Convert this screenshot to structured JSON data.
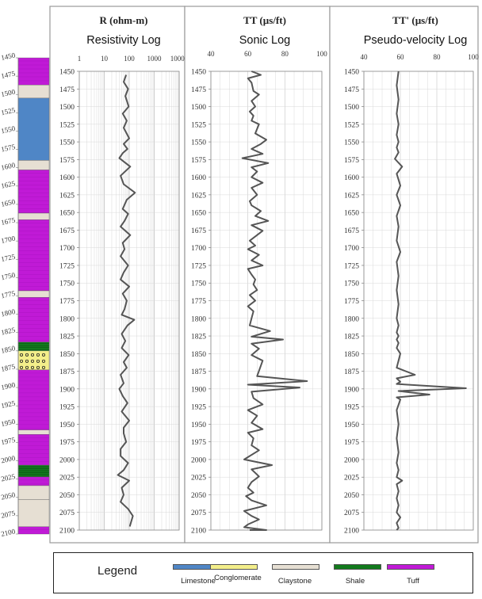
{
  "colors": {
    "Limestone": "#4f86c6",
    "Conglomerate": "#f3ee8a",
    "Claystone": "#e6dfd3",
    "Shale": "#127a1d",
    "Tuff": "#c01ad6",
    "curve": "#555555",
    "grid": "#d9d9d9"
  },
  "legend": {
    "title": "Legend",
    "items": [
      "Limestone",
      "Conglomerate",
      "Claystone",
      "Shale",
      "Tuff"
    ]
  },
  "lithology": {
    "depth_ticks": [
      "1450",
      "1475",
      "1500",
      "1525",
      "1550",
      "1575",
      "1600",
      "1625",
      "1650",
      "1675",
      "1700",
      "1725",
      "1750",
      "1775",
      "1800",
      "1825",
      "1850",
      "1875",
      "1900",
      "1925",
      "1950",
      "1975",
      "2000",
      "2025",
      "2050",
      "2075",
      "2100"
    ],
    "intervals": [
      {
        "top": 1450,
        "base": 1487,
        "lith": "Tuff"
      },
      {
        "top": 1487,
        "base": 1505,
        "lith": "Claystone"
      },
      {
        "top": 1505,
        "base": 1590,
        "lith": "Limestone"
      },
      {
        "top": 1590,
        "base": 1603,
        "lith": "Claystone"
      },
      {
        "top": 1603,
        "base": 1662,
        "lith": "Tuff"
      },
      {
        "top": 1662,
        "base": 1671,
        "lith": "Claystone"
      },
      {
        "top": 1671,
        "base": 1768,
        "lith": "Tuff"
      },
      {
        "top": 1768,
        "base": 1777,
        "lith": "Claystone"
      },
      {
        "top": 1777,
        "base": 1838,
        "lith": "Tuff"
      },
      {
        "top": 1838,
        "base": 1850,
        "lith": "Shale"
      },
      {
        "top": 1850,
        "base": 1876,
        "lith": "Conglomerate"
      },
      {
        "top": 1876,
        "base": 1958,
        "lith": "Tuff"
      },
      {
        "top": 1958,
        "base": 1964,
        "lith": "Claystone"
      },
      {
        "top": 1964,
        "base": 2006,
        "lith": "Tuff"
      },
      {
        "top": 2006,
        "base": 2022,
        "lith": "Shale"
      },
      {
        "top": 2022,
        "base": 2034,
        "lith": "Tuff"
      },
      {
        "top": 2034,
        "base": 2053,
        "lith": "Claystone"
      },
      {
        "top": 2053,
        "base": 2090,
        "lith": "Claystone"
      },
      {
        "top": 2090,
        "base": 2100,
        "lith": "Tuff"
      }
    ]
  },
  "chart_data": [
    {
      "type": "line",
      "title": "R (ohm-m)",
      "subtitle": "Resistivity Log",
      "x_scale": "log",
      "xlim": [
        1,
        10000
      ],
      "x_ticks": [
        "1",
        "10",
        "100",
        "1000",
        "10000"
      ],
      "ylim": [
        1450,
        2100
      ],
      "y_inverted": true,
      "y_ticks": [
        "1450",
        "1475",
        "1500",
        "1525",
        "1550",
        "1575",
        "1600",
        "1625",
        "1650",
        "1675",
        "1700",
        "1725",
        "1750",
        "1775",
        "1800",
        "1825",
        "1850",
        "1875",
        "1900",
        "1925",
        "1950",
        "1975",
        "2000",
        "2025",
        "2050",
        "2075",
        "2100"
      ],
      "grid": true,
      "series": [
        {
          "x": [
            75,
            60,
            90,
            70,
            95,
            55,
            80,
            60,
            100,
            60,
            85,
            55,
            40,
            110,
            45,
            60,
            170,
            80,
            55,
            90,
            65,
            45,
            110,
            55,
            65,
            45,
            90,
            60,
            45,
            100,
            55,
            80,
            65,
            50,
            160,
            85,
            50,
            70,
            50,
            95,
            60,
            80,
            45,
            60,
            40,
            55,
            85,
            50,
            100,
            60,
            60,
            75,
            45,
            45,
            90,
            60,
            35,
            100,
            50,
            60,
            45,
            90,
            140,
            105
          ],
          "y": [
            1455,
            1465,
            1475,
            1485,
            1500,
            1510,
            1520,
            1530,
            1545,
            1553,
            1560,
            1566,
            1573,
            1585,
            1598,
            1610,
            1622,
            1632,
            1645,
            1652,
            1662,
            1670,
            1682,
            1693,
            1702,
            1712,
            1725,
            1735,
            1745,
            1755,
            1765,
            1775,
            1787,
            1795,
            1802,
            1810,
            1822,
            1832,
            1842,
            1852,
            1862,
            1870,
            1880,
            1892,
            1900,
            1910,
            1920,
            1932,
            1945,
            1955,
            1963,
            1975,
            1985,
            1995,
            2005,
            2015,
            2022,
            2030,
            2040,
            2050,
            2060,
            2070,
            2080,
            2095
          ]
        }
      ]
    },
    {
      "type": "line",
      "title": "TT (µs/ft)",
      "subtitle": "Sonic Log",
      "xlim": [
        40,
        100
      ],
      "x_ticks": [
        "40",
        "60",
        "80",
        "100"
      ],
      "ylim": [
        1450,
        2100
      ],
      "y_inverted": true,
      "y_ticks": [
        "1450",
        "1475",
        "1500",
        "1525",
        "1550",
        "1575",
        "1600",
        "1625",
        "1650",
        "1675",
        "1700",
        "1725",
        "1750",
        "1775",
        "1800",
        "1825",
        "1850",
        "1875",
        "1900",
        "1925",
        "1950",
        "1975",
        "2000",
        "2025",
        "2050",
        "2075",
        "2100"
      ],
      "grid": true,
      "series": [
        {
          "x": [
            62,
            67,
            60,
            62,
            63,
            66,
            62,
            64,
            61,
            63,
            62,
            66,
            64,
            70,
            67,
            62,
            68,
            57,
            71,
            62,
            65,
            62,
            68,
            62,
            65,
            61,
            62,
            67,
            64,
            71,
            62,
            68,
            65,
            61,
            64,
            60,
            66,
            62,
            68,
            60,
            62,
            64,
            63,
            65,
            61,
            64,
            60,
            63,
            62,
            61,
            72,
            62,
            79,
            62,
            66,
            62,
            68,
            65,
            92,
            60,
            88,
            62,
            63,
            68,
            60,
            65,
            62,
            68,
            60,
            63,
            62,
            66,
            58,
            73,
            62,
            66,
            62,
            60,
            63,
            59,
            62,
            70,
            58,
            62,
            66,
            60,
            58,
            70,
            61
          ],
          "y": [
            1450,
            1455,
            1460,
            1466,
            1478,
            1483,
            1492,
            1500,
            1507,
            1513,
            1520,
            1525,
            1538,
            1547,
            1553,
            1560,
            1567,
            1573,
            1580,
            1586,
            1592,
            1600,
            1608,
            1615,
            1625,
            1634,
            1640,
            1648,
            1655,
            1662,
            1668,
            1676,
            1682,
            1690,
            1697,
            1702,
            1710,
            1718,
            1725,
            1730,
            1738,
            1745,
            1752,
            1760,
            1767,
            1775,
            1783,
            1790,
            1800,
            1810,
            1818,
            1826,
            1830,
            1836,
            1843,
            1852,
            1860,
            1882,
            1889,
            1894,
            1898,
            1904,
            1913,
            1922,
            1930,
            1938,
            1948,
            1957,
            1962,
            1970,
            1980,
            1987,
            2000,
            2008,
            2014,
            2024,
            2032,
            2040,
            2047,
            2052,
            2058,
            2065,
            2073,
            2080,
            2085,
            2092,
            2096,
            2100,
            2100
          ]
        }
      ]
    },
    {
      "type": "line",
      "title": "TT' (µs/ft)",
      "subtitle": "Pseudo-velocity Log",
      "xlim": [
        40,
        100
      ],
      "x_ticks": [
        "40",
        "60",
        "80",
        "100"
      ],
      "ylim": [
        1450,
        2100
      ],
      "y_inverted": true,
      "y_ticks": [
        "1450",
        "1475",
        "1500",
        "1525",
        "1550",
        "1575",
        "1600",
        "1625",
        "1650",
        "1675",
        "1700",
        "1725",
        "1750",
        "1775",
        "1800",
        "1825",
        "1850",
        "1875",
        "1900",
        "1925",
        "1950",
        "1975",
        "2000",
        "2025",
        "2050",
        "2075",
        "2100"
      ],
      "grid": true,
      "series": [
        {
          "x": [
            59,
            58,
            59,
            58,
            59,
            58,
            59,
            58,
            59,
            57,
            61,
            58,
            60,
            58,
            60,
            58,
            59,
            58,
            60,
            58,
            59,
            58,
            59,
            58,
            59,
            58,
            59,
            58,
            59,
            58,
            60,
            58,
            68,
            58,
            60,
            58,
            96,
            59,
            76,
            58,
            60,
            58,
            59,
            58,
            59,
            58,
            59,
            58,
            61,
            58,
            59,
            58,
            59,
            58,
            60,
            58,
            59,
            58
          ],
          "y": [
            1450,
            1470,
            1490,
            1510,
            1525,
            1540,
            1550,
            1558,
            1565,
            1574,
            1585,
            1595,
            1612,
            1625,
            1640,
            1655,
            1670,
            1690,
            1706,
            1720,
            1740,
            1760,
            1780,
            1800,
            1810,
            1820,
            1825,
            1830,
            1835,
            1842,
            1850,
            1870,
            1880,
            1885,
            1890,
            1893,
            1899,
            1903,
            1908,
            1912,
            1915,
            1930,
            1950,
            1970,
            1990,
            2005,
            2015,
            2025,
            2030,
            2035,
            2045,
            2055,
            2065,
            2075,
            2082,
            2090,
            2097,
            2100
          ]
        }
      ]
    }
  ]
}
